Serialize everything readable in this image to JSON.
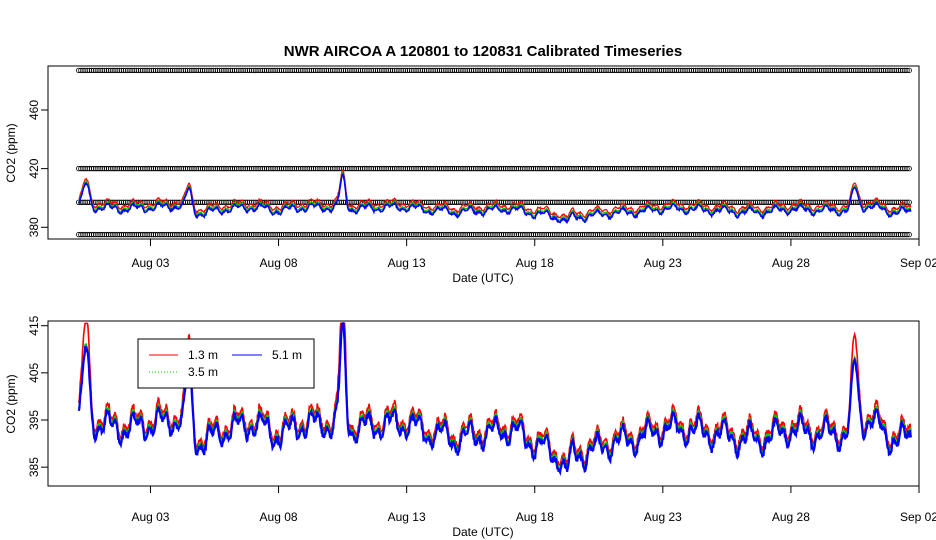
{
  "chart_data": [
    {
      "type": "scatter",
      "title": "NWR   AIRCOA  A   120801  to  120831   Calibrated Timeseries",
      "xlabel": "Date (UTC)",
      "ylabel": "CO2 (ppm)",
      "x_range": [
        "2012-07-30",
        "2012-09-02"
      ],
      "xticks": [
        "Aug 03",
        "Aug 08",
        "Aug 13",
        "Aug 18",
        "Aug 23",
        "Aug 28",
        "Sep 02"
      ],
      "ylim": [
        372,
        490
      ],
      "yticks": [
        380,
        420,
        460
      ],
      "yticklabels": [
        "380",
        "420",
        "460"
      ],
      "calibration_levels_ppm": [
        375,
        397,
        420,
        487
      ],
      "calibration_color": "#000000",
      "series": [
        {
          "color": "#ff0000",
          "baseline_ppm": 394.5
        },
        {
          "color": "#00cc00",
          "baseline_ppm": 393.0
        },
        {
          "color": "#0000ff",
          "baseline_ppm": 392.0
        }
      ],
      "data_start": "2012-07-31",
      "data_end": "2012-09-01",
      "grid": false
    },
    {
      "type": "line",
      "xlabel": "Date (UTC)",
      "ylabel": "CO2 (ppm)",
      "x_range": [
        "2012-07-30",
        "2012-09-02"
      ],
      "xticks": [
        "Aug 03",
        "Aug 08",
        "Aug 13",
        "Aug 18",
        "Aug 23",
        "Aug 28",
        "Sep 02"
      ],
      "ylim": [
        381,
        416
      ],
      "yticks": [
        385,
        395,
        405,
        415
      ],
      "yticklabels": [
        "385",
        "395",
        "405",
        "415"
      ],
      "legend": {
        "placement": "top-left",
        "entries": [
          {
            "label": "1.3 m",
            "color": "#ff0000"
          },
          {
            "label": "3.5 m",
            "color": "#00cc00"
          },
          {
            "label": "5.1 m",
            "color": "#0000ff"
          }
        ]
      },
      "daily_mean_co2_ppm": {
        "dates": [
          "2012-07-31",
          "2012-08-01",
          "2012-08-02",
          "2012-08-03",
          "2012-08-04",
          "2012-08-05",
          "2012-08-06",
          "2012-08-07",
          "2012-08-08",
          "2012-08-09",
          "2012-08-10",
          "2012-08-11",
          "2012-08-12",
          "2012-08-13",
          "2012-08-14",
          "2012-08-15",
          "2012-08-16",
          "2012-08-17",
          "2012-08-18",
          "2012-08-19",
          "2012-08-20",
          "2012-08-21",
          "2012-08-22",
          "2012-08-23",
          "2012-08-24",
          "2012-08-25",
          "2012-08-26",
          "2012-08-27",
          "2012-08-28",
          "2012-08-29",
          "2012-08-30",
          "2012-08-31",
          "2012-09-01"
        ],
        "values": [
          397,
          394,
          393,
          394,
          395,
          390,
          393,
          394,
          392,
          394,
          394,
          393,
          394,
          394,
          392,
          391,
          392,
          393,
          390,
          387,
          388,
          390,
          391,
          393,
          393,
          392,
          391,
          391,
          393,
          392,
          392,
          395,
          391
        ]
      },
      "peaks": [
        {
          "date": "2012-07-31T12:00",
          "value": 410
        },
        {
          "date": "2012-08-04T12:00",
          "value": 406
        },
        {
          "date": "2012-08-10T12:00",
          "value": 414
        },
        {
          "date": "2012-08-19T06:00",
          "value": 384
        },
        {
          "date": "2012-08-30T12:00",
          "value": 407
        }
      ],
      "grid": false
    }
  ]
}
